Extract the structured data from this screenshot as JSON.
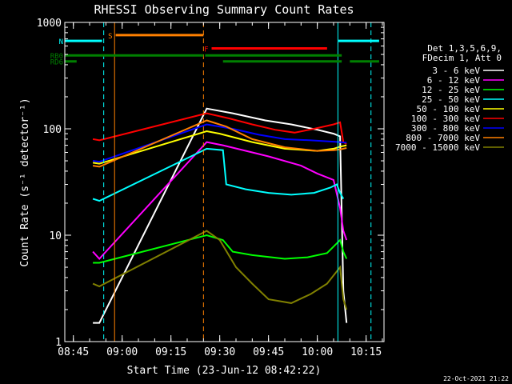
{
  "chart_data": {
    "type": "line",
    "title": "RHESSI Observing Summary Count Rates",
    "xlabel": "Start Time (23-Jun-12 08:42:22)",
    "ylabel": "Count Rate (s⁻¹ detector⁻¹)",
    "yscale": "log",
    "ylim": [
      1,
      1000
    ],
    "xlim": [
      "08:42:22",
      "10:20:30"
    ],
    "x_ticks": [
      "08:45",
      "09:00",
      "09:15",
      "09:30",
      "09:45",
      "10:00",
      "10:15"
    ],
    "y_ticks": [
      "1",
      "10",
      "100",
      "1000"
    ],
    "timestamp": "22-Oct-2021 21:22",
    "legend_header": [
      "Det 1,3,5,6,9,",
      "FDecim 1, Att 0"
    ],
    "colors": {
      "background": "#000000",
      "axes": "#ffffff",
      "flags_cyan": "#00ffff",
      "flags_orange": "#ff8000",
      "flags_red": "#ff0000",
      "flags_green": "#008000"
    },
    "flags": [
      {
        "label": "S",
        "color": "#ff8000",
        "y": 760,
        "segments": [
          [
            "08:58:00",
            "09:25:00"
          ]
        ]
      },
      {
        "label": "N",
        "color": "#00ffff",
        "y": 670,
        "segments": [
          [
            "08:42:22",
            "08:53:50"
          ],
          [
            "10:06:30",
            "10:19:00"
          ]
        ]
      },
      {
        "label": "F",
        "color": "#ff0000",
        "y": 570,
        "segments": [
          [
            "09:27:30",
            "10:03:00"
          ]
        ]
      },
      {
        "label": "RB0",
        "color": "#008000",
        "y": 490,
        "segments": [
          [
            "08:42:22",
            "09:25:00"
          ],
          [
            "09:25:30",
            "10:07:30"
          ]
        ]
      },
      {
        "label": "RD6",
        "color": "#008000",
        "y": 430,
        "segments": [
          [
            "08:42:22",
            "08:46:00"
          ],
          [
            "09:31:00",
            "10:07:30"
          ],
          [
            "10:10:00",
            "10:19:00"
          ]
        ]
      }
    ],
    "vlines": [
      {
        "time": "08:54:20",
        "color": "#00ffff",
        "style": "dashed"
      },
      {
        "time": "08:57:40",
        "color": "#ff8000",
        "style": "solid"
      },
      {
        "time": "09:25:00",
        "color": "#ff8000",
        "style": "dashed"
      },
      {
        "time": "10:06:20",
        "color": "#00ffff",
        "style": "solid"
      },
      {
        "time": "10:16:30",
        "color": "#00ffff",
        "style": "dashed"
      }
    ],
    "series": [
      {
        "name": "3 - 6 keV",
        "color": "#ffffff",
        "points": [
          [
            "08:51:00",
            1.5
          ],
          [
            "08:53:00",
            1.5
          ],
          [
            "09:26:00",
            155
          ],
          [
            "09:34:00",
            140
          ],
          [
            "09:44:00",
            120
          ],
          [
            "09:52:00",
            110
          ],
          [
            "10:00:00",
            98
          ],
          [
            "10:05:00",
            90
          ],
          [
            "10:07:00",
            85
          ],
          [
            "10:08:00",
            3
          ],
          [
            "10:09:00",
            1.5
          ]
        ]
      },
      {
        "name": "6 - 12 keV",
        "color": "#ff00ff",
        "points": [
          [
            "08:51:00",
            7
          ],
          [
            "08:53:00",
            6
          ],
          [
            "09:26:00",
            75
          ],
          [
            "09:31:00",
            70
          ],
          [
            "09:40:00",
            60
          ],
          [
            "09:45:00",
            55
          ],
          [
            "09:55:00",
            45
          ],
          [
            "10:00:00",
            38
          ],
          [
            "10:05:00",
            33
          ],
          [
            "10:07:00",
            18
          ],
          [
            "10:08:00",
            11
          ],
          [
            "10:09:00",
            9
          ]
        ]
      },
      {
        "name": "12 - 25 keV",
        "color": "#00ff00",
        "points": [
          [
            "08:51:00",
            5.5
          ],
          [
            "08:53:00",
            5.5
          ],
          [
            "09:26:00",
            10
          ],
          [
            "09:31:00",
            9
          ],
          [
            "09:34:00",
            7
          ],
          [
            "09:40:00",
            6.5
          ],
          [
            "09:50:00",
            6
          ],
          [
            "09:57:00",
            6.2
          ],
          [
            "10:03:00",
            6.8
          ],
          [
            "10:07:00",
            9
          ],
          [
            "10:08:00",
            7
          ],
          [
            "10:09:00",
            6
          ]
        ]
      },
      {
        "name": "25 - 50 keV",
        "color": "#00ffff",
        "points": [
          [
            "08:51:00",
            22
          ],
          [
            "08:53:00",
            21
          ],
          [
            "09:26:00",
            65
          ],
          [
            "09:31:00",
            63
          ],
          [
            "09:32:00",
            30
          ],
          [
            "09:38:00",
            27
          ],
          [
            "09:45:00",
            25
          ],
          [
            "09:52:00",
            24
          ],
          [
            "09:59:00",
            25
          ],
          [
            "10:04:00",
            28
          ],
          [
            "10:06:00",
            30
          ],
          [
            "10:07:00",
            25
          ],
          [
            "10:08:00",
            22
          ]
        ]
      },
      {
        "name": "50 - 100 keV",
        "color": "#ffff00",
        "points": [
          [
            "08:51:00",
            48
          ],
          [
            "08:53:00",
            47
          ],
          [
            "09:26:00",
            95
          ],
          [
            "09:30:00",
            90
          ],
          [
            "09:40:00",
            75
          ],
          [
            "09:50:00",
            65
          ],
          [
            "10:00:00",
            62
          ],
          [
            "10:05:00",
            65
          ],
          [
            "10:07:00",
            68
          ],
          [
            "10:09:00",
            70
          ]
        ]
      },
      {
        "name": "100 - 300 keV",
        "color": "#ff0000",
        "points": [
          [
            "08:51:00",
            80
          ],
          [
            "08:53:00",
            78
          ],
          [
            "09:26:00",
            140
          ],
          [
            "09:33:00",
            125
          ],
          [
            "09:40:00",
            110
          ],
          [
            "09:47:00",
            98
          ],
          [
            "09:53:00",
            92
          ],
          [
            "09:59:00",
            100
          ],
          [
            "10:05:00",
            110
          ],
          [
            "10:07:00",
            115
          ],
          [
            "10:08:00",
            75
          ],
          [
            "10:09:00",
            72
          ]
        ]
      },
      {
        "name": "300 - 800 keV",
        "color": "#0000ff",
        "points": [
          [
            "08:51:00",
            50
          ],
          [
            "08:53:00",
            49
          ],
          [
            "09:26:00",
            110
          ],
          [
            "09:34:00",
            100
          ],
          [
            "09:42:00",
            88
          ],
          [
            "09:50:00",
            80
          ],
          [
            "09:58:00",
            78
          ],
          [
            "10:04:00",
            76
          ],
          [
            "10:07:00",
            75
          ],
          [
            "10:09:00",
            74
          ]
        ]
      },
      {
        "name": "800 - 7000 keV",
        "color": "#ff8000",
        "points": [
          [
            "08:51:00",
            45
          ],
          [
            "08:53:00",
            44
          ],
          [
            "09:26:00",
            120
          ],
          [
            "09:32:00",
            105
          ],
          [
            "09:40:00",
            80
          ],
          [
            "09:50:00",
            67
          ],
          [
            "10:00:00",
            62
          ],
          [
            "10:05:00",
            63
          ],
          [
            "10:07:00",
            64
          ],
          [
            "10:09:00",
            66
          ]
        ]
      },
      {
        "name": "7000 - 15000 keV",
        "color": "#808000",
        "points": [
          [
            "08:51:00",
            3.5
          ],
          [
            "08:53:00",
            3.3
          ],
          [
            "09:26:00",
            11
          ],
          [
            "09:30:00",
            9
          ],
          [
            "09:35:00",
            5
          ],
          [
            "09:40:00",
            3.5
          ],
          [
            "09:45:00",
            2.5
          ],
          [
            "09:52:00",
            2.3
          ],
          [
            "09:58:00",
            2.8
          ],
          [
            "10:03:00",
            3.5
          ],
          [
            "10:07:00",
            5
          ],
          [
            "10:08:00",
            2.5
          ],
          [
            "10:09:00",
            2
          ]
        ]
      }
    ]
  }
}
